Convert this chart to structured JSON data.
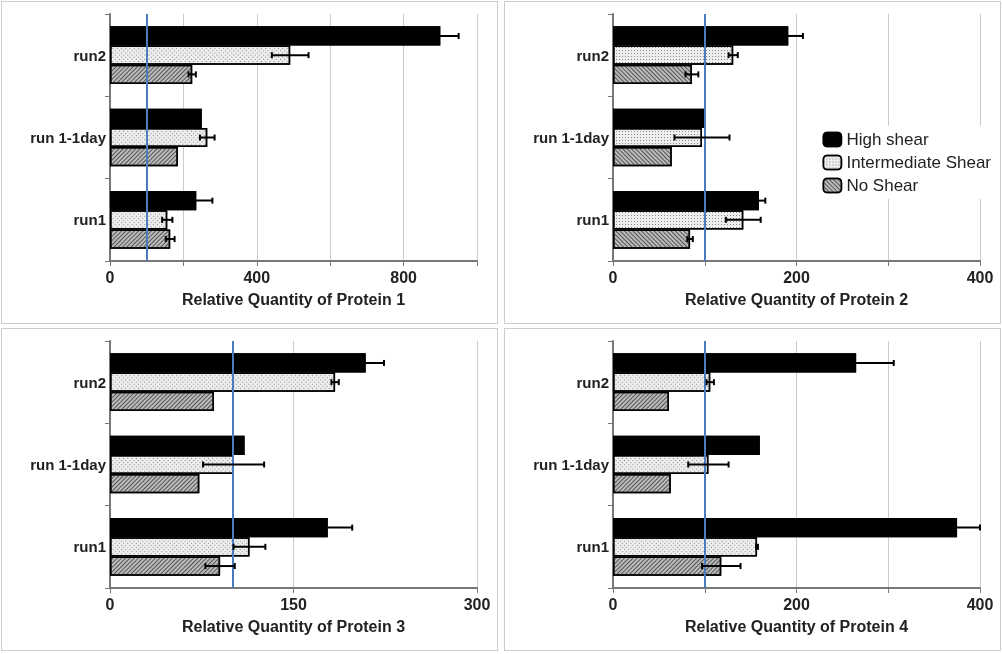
{
  "chart_data": [
    {
      "type": "bar",
      "orientation": "horizontal",
      "xlabel": "Relative Quantity of Protein 1",
      "categories": [
        "run2",
        "run 1-1day",
        "run1"
      ],
      "xlim": [
        0,
        1000
      ],
      "xticks": [
        0,
        {
          "value": 200,
          "label": null
        },
        400,
        {
          "value": 600,
          "label": null
        },
        800,
        {
          "value": 1000,
          "label": null
        }
      ],
      "grid": "x",
      "ref_lines": [
        {
          "axis": "x",
          "value": 100,
          "color": "#4a7cc0"
        }
      ],
      "series": [
        {
          "color": "#000000",
          "values": [
            900,
            250,
            235
          ],
          "errors": [
            50,
            null,
            44
          ]
        },
        {
          "color": "#eeeeee",
          "values": [
            491,
            265,
            156
          ],
          "errors": [
            50,
            20,
            14
          ]
        },
        {
          "color": "#bbbbbb",
          "values": [
            224,
            185,
            164
          ],
          "errors": [
            10,
            null,
            12
          ]
        }
      ]
    },
    {
      "type": "bar",
      "orientation": "horizontal",
      "xlabel": "Relative Quantity of Protein 2",
      "categories": [
        "run2",
        "run 1-1day",
        "run1"
      ],
      "xlim": [
        0,
        400
      ],
      "xticks": [
        0,
        {
          "value": 100,
          "label": null
        },
        200,
        {
          "value": 300,
          "label": null
        },
        400
      ],
      "grid": "x",
      "legend": "right",
      "ref_lines": [
        {
          "axis": "x",
          "value": 100,
          "color": "#4a7cc0"
        }
      ],
      "series": [
        {
          "name": "High shear",
          "color": "#000000",
          "values": [
            191,
            100,
            159
          ],
          "errors": [
            16,
            null,
            7
          ]
        },
        {
          "name": "Intermediate Shear",
          "color": "#eeeeee",
          "values": [
            131,
            97,
            142
          ],
          "errors": [
            5,
            30,
            19
          ]
        },
        {
          "name": "No Shear",
          "color": "#bbbbbb",
          "values": [
            86,
            64,
            84
          ],
          "errors": [
            7,
            null,
            3
          ]
        }
      ]
    },
    {
      "type": "bar",
      "orientation": "horizontal",
      "xlabel": "Relative Quantity of Protein 3",
      "categories": [
        "run2",
        "run 1-1day",
        "run1"
      ],
      "xlim": [
        0,
        300
      ],
      "xticks": [
        0,
        150,
        300
      ],
      "grid": "x",
      "ref_lines": [
        {
          "axis": "x",
          "value": 100,
          "color": "#4a7cc0"
        }
      ],
      "series": [
        {
          "color": "#000000",
          "values": [
            209,
            110,
            178
          ],
          "errors": [
            15,
            null,
            20
          ]
        },
        {
          "color": "#eeeeee",
          "values": [
            184,
            101,
            114
          ],
          "errors": [
            3,
            25,
            13
          ]
        },
        {
          "color": "#bbbbbb",
          "values": [
            85,
            73,
            90
          ],
          "errors": [
            null,
            null,
            12
          ]
        }
      ]
    },
    {
      "type": "bar",
      "orientation": "horizontal",
      "xlabel": "Relative Quantity of Protein 4",
      "categories": [
        "run2",
        "run 1-1day",
        "run1"
      ],
      "xlim": [
        0,
        400
      ],
      "xticks": [
        0,
        {
          "value": 100,
          "label": null
        },
        200,
        {
          "value": 300,
          "label": null
        },
        400
      ],
      "grid": "x",
      "ref_lines": [
        {
          "axis": "x",
          "value": 100,
          "color": "#4a7cc0"
        }
      ],
      "series": [
        {
          "color": "#000000",
          "values": [
            265,
            160,
            375
          ],
          "errors": [
            41,
            null,
            25
          ]
        },
        {
          "color": "#eeeeee",
          "values": [
            106,
            104,
            157
          ],
          "errors": [
            4,
            22,
            1
          ]
        },
        {
          "color": "#bbbbbb",
          "values": [
            61,
            63,
            118
          ],
          "errors": [
            null,
            null,
            21
          ]
        }
      ]
    }
  ]
}
